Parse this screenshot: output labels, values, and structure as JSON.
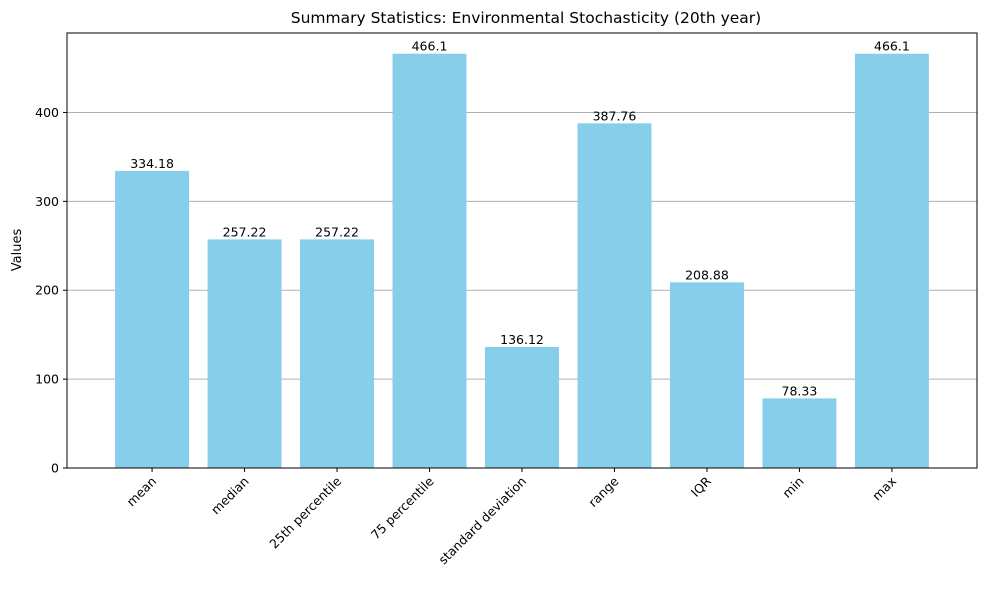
{
  "chart_data": {
    "type": "bar",
    "title": "Summary Statistics: Environmental Stochasticity (20th year)",
    "xlabel": "",
    "ylabel": "Values",
    "categories": [
      "mean",
      "median",
      "25th percentile",
      "75 percentile",
      "standard deviation",
      "range",
      "IQR",
      "min",
      "max"
    ],
    "values": [
      334.18,
      257.22,
      257.22,
      466.1,
      136.12,
      387.76,
      208.88,
      78.33,
      466.1
    ],
    "value_labels": [
      "334.18",
      "257.22",
      "257.22",
      "466.1",
      "136.12",
      "387.76",
      "208.88",
      "78.33",
      "466.1"
    ],
    "ylim": [
      0,
      489.4
    ],
    "yticks": [
      0,
      100,
      200,
      300,
      400
    ],
    "ytick_labels": [
      "0",
      "100",
      "200",
      "300",
      "400"
    ],
    "grid": "y-axis major",
    "bar_color": "#87ceeb",
    "xtick_rotation_deg": 45
  }
}
